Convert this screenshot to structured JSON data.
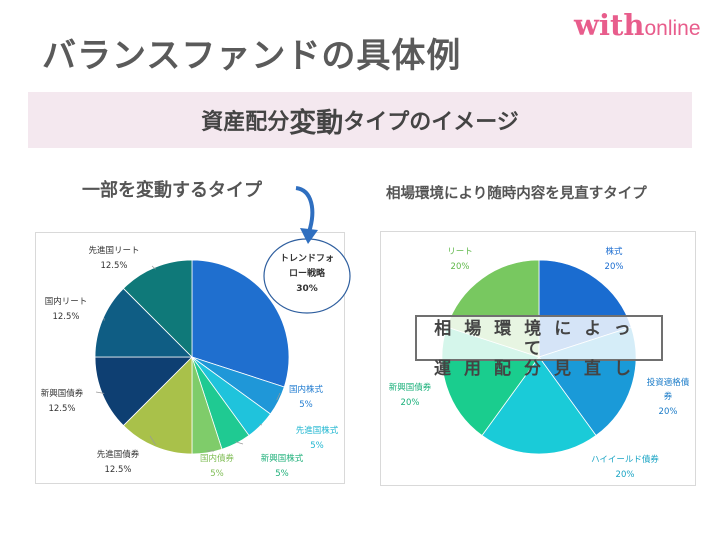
{
  "title": "バランスファンドの具体例",
  "logo": {
    "bold": "with",
    "light": "online"
  },
  "banner": {
    "part1": "資産配分",
    "part2": "変動",
    "part3": "タイプのイメージ"
  },
  "left_heading": "一部を変動するタイプ",
  "right_heading": "相場環境により随時内容を見直すタイプ",
  "overlay": {
    "line1": "相場環境によって",
    "line2": "運用配分見直し"
  },
  "callout": {
    "line1": "トレンドフォ",
    "line2": "ロー戦略",
    "line3": "30%"
  },
  "colors": {
    "accent": "#e85d8c",
    "banner": "#f4e8ef",
    "arrow": "#2f6fc0"
  },
  "chart_data": [
    {
      "type": "pie",
      "title": "一部を変動するタイプ",
      "slices": [
        {
          "label": "トレンドフォロー戦略",
          "value": 30,
          "pct": "30%",
          "color": "#1f6fcf"
        },
        {
          "label": "国内株式",
          "value": 5,
          "pct": "5%",
          "color": "#1f97d8"
        },
        {
          "label": "先進国株式",
          "value": 5,
          "pct": "5%",
          "color": "#1fc3dc"
        },
        {
          "label": "新興国株式",
          "value": 5,
          "pct": "5%",
          "color": "#1fca92"
        },
        {
          "label": "国内債券",
          "value": 5,
          "pct": "5%",
          "color": "#7fcc6a"
        },
        {
          "label": "先進国債券",
          "value": 12.5,
          "pct": "12.5%",
          "color": "#a9c14a"
        },
        {
          "label": "新興国債券",
          "value": 12.5,
          "pct": "12.5%",
          "color": "#0e3f72"
        },
        {
          "label": "国内リート",
          "value": 12.5,
          "pct": "12.5%",
          "color": "#0f5d84"
        },
        {
          "label": "先進国リート",
          "value": 12.5,
          "pct": "12.5%",
          "color": "#0f7979"
        }
      ]
    },
    {
      "type": "pie",
      "title": "相場環境により随時内容を見直すタイプ",
      "slices": [
        {
          "label": "株式",
          "value": 20,
          "pct": "20%",
          "color": "#1a6cd0"
        },
        {
          "label": "投資適格債券",
          "value": 20,
          "pct": "20%",
          "color": "#1a9ad8"
        },
        {
          "label": "ハイイールド債券",
          "value": 20,
          "pct": "20%",
          "color": "#1acbd8"
        },
        {
          "label": "新興国債券",
          "value": 20,
          "pct": "20%",
          "color": "#1acd8e"
        },
        {
          "label": "リート",
          "value": 20,
          "pct": "20%",
          "color": "#78c860"
        }
      ]
    }
  ]
}
